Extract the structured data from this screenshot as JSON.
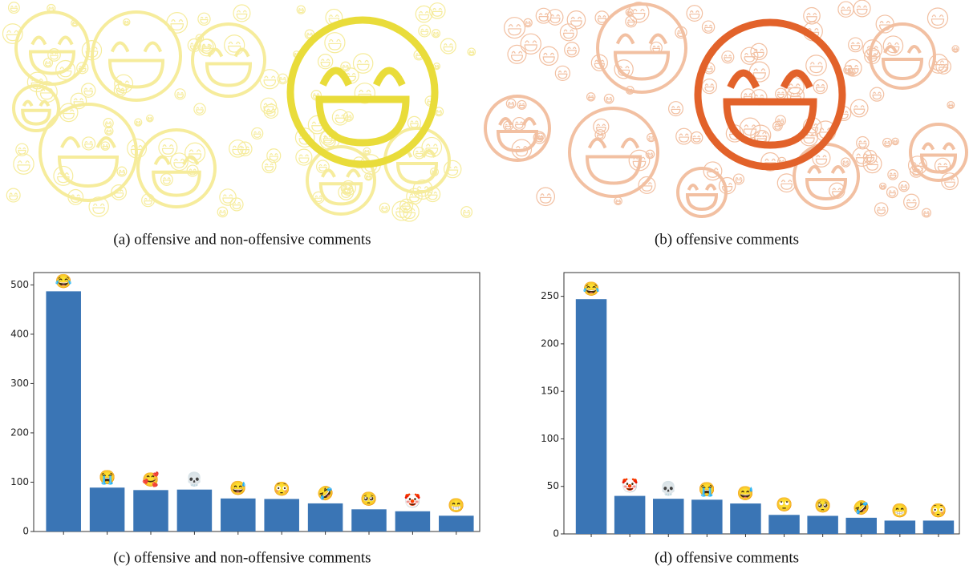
{
  "captions": [
    "(a) offensive and non-offensive comments",
    "(b) offensive comments",
    "(c) offensive and non-offensive comments",
    "(d) offensive comments"
  ],
  "chart_data": [
    {
      "type": "bar",
      "color": "#3a75b5",
      "categories": [
        "😂",
        "😭",
        "🥰",
        "💀",
        "😅",
        "😳",
        "🤣",
        "🥺",
        "🤡",
        "😁"
      ],
      "values": [
        487,
        89,
        84,
        85,
        67,
        66,
        57,
        45,
        41,
        32
      ],
      "ylim": [
        0,
        525
      ],
      "yticks": [
        0,
        100,
        200,
        300,
        400,
        500
      ],
      "grid": false
    },
    {
      "type": "bar",
      "color": "#3a75b5",
      "categories": [
        "😂",
        "🤡",
        "💀",
        "😭",
        "😅",
        "🙄",
        "🥺",
        "🤣",
        "😁",
        "😳"
      ],
      "values": [
        247,
        40,
        37,
        36,
        32,
        20,
        19,
        17,
        14,
        14
      ],
      "ylim": [
        0,
        275
      ],
      "yticks": [
        0,
        50,
        100,
        150,
        200,
        250
      ],
      "grid": false
    }
  ]
}
